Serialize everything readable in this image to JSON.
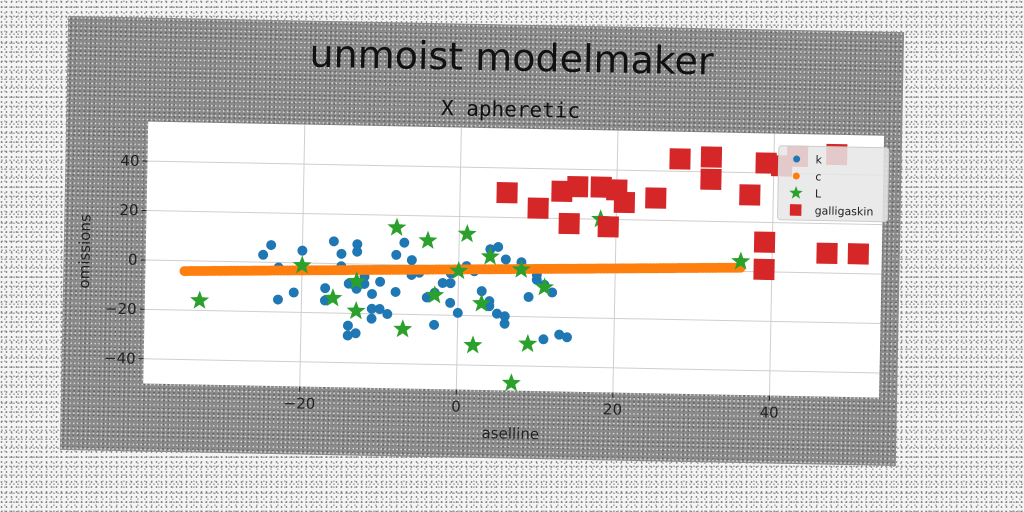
{
  "chart_data": {
    "type": "scatter",
    "suptitle": "unmoist modelmaker",
    "title": "X apheretic",
    "xlabel": "aselline",
    "ylabel": "omissions",
    "xlim": [
      -40,
      54
    ],
    "ylim": [
      -50,
      56
    ],
    "xticks": [
      -20,
      0,
      20,
      40
    ],
    "yticks": [
      -40,
      -20,
      0,
      20,
      40
    ],
    "xtick_labels": [
      "−20",
      "0",
      "20",
      "40"
    ],
    "ytick_labels": [
      "−40",
      "−20",
      "0",
      "20",
      "40"
    ],
    "grid": true,
    "legend_position": "top-right",
    "series": [
      {
        "name": "k",
        "marker": "circle",
        "color": "#1f77b4",
        "points": [
          [
            -24,
            7
          ],
          [
            -25,
            3
          ],
          [
            -23,
            -2
          ],
          [
            -23,
            -15
          ],
          [
            -21,
            -12
          ],
          [
            -20,
            5
          ],
          [
            -17,
            -10
          ],
          [
            -17,
            -15
          ],
          [
            -16,
            9
          ],
          [
            -15,
            4
          ],
          [
            -15,
            -1
          ],
          [
            -14,
            -8
          ],
          [
            -13,
            -10
          ],
          [
            -13,
            5
          ],
          [
            -13,
            8
          ],
          [
            -12,
            -5
          ],
          [
            -11,
            -18
          ],
          [
            -11,
            -22
          ],
          [
            -10,
            -18
          ],
          [
            -9,
            -20
          ],
          [
            -8,
            -11
          ],
          [
            -8,
            4
          ],
          [
            -7,
            9
          ],
          [
            -6,
            -4
          ],
          [
            -5,
            -3
          ],
          [
            -4,
            -13
          ],
          [
            -3,
            -11
          ],
          [
            -2,
            -7
          ],
          [
            -1,
            -7
          ],
          [
            -1,
            -15
          ],
          [
            0,
            -19
          ],
          [
            1,
            0
          ],
          [
            2,
            -2
          ],
          [
            3,
            -10
          ],
          [
            4,
            -14
          ],
          [
            4,
            -16
          ],
          [
            5,
            -19
          ],
          [
            6,
            -20
          ],
          [
            6,
            -23
          ],
          [
            4,
            7
          ],
          [
            5,
            8
          ],
          [
            6,
            3
          ],
          [
            -14,
            -25
          ],
          [
            -13,
            -28
          ],
          [
            -14,
            -29
          ],
          [
            -12,
            -8
          ],
          [
            -11,
            -12
          ],
          [
            -10,
            -7
          ],
          [
            -3,
            -24
          ],
          [
            -6,
            2
          ],
          [
            -1,
            -3
          ],
          [
            8,
            2
          ],
          [
            10,
            -5
          ],
          [
            9,
            -12
          ],
          [
            11,
            -7
          ],
          [
            12,
            -10
          ],
          [
            13,
            -27
          ],
          [
            14,
            -28
          ],
          [
            11,
            -29
          ],
          [
            10,
            -3
          ]
        ]
      },
      {
        "name": "c",
        "marker": "circle",
        "color": "#ff7f0e",
        "linear_fit": {
          "x_start": -35,
          "x_end": 36,
          "y_start": -4.2,
          "y_end": 1.5,
          "n": 180
        }
      },
      {
        "name": "L",
        "marker": "star",
        "color": "#2ca02c",
        "points": [
          [
            -33,
            -16
          ],
          [
            -20,
            -1
          ],
          [
            -16,
            -14
          ],
          [
            -13,
            -19
          ],
          [
            -13,
            -7
          ],
          [
            -8,
            15
          ],
          [
            -7,
            -26
          ],
          [
            -4,
            10
          ],
          [
            -3,
            -12
          ],
          [
            0,
            -2
          ],
          [
            1,
            13
          ],
          [
            2,
            -32
          ],
          [
            3,
            -15
          ],
          [
            4,
            4
          ],
          [
            7,
            -47
          ],
          [
            8,
            -1
          ],
          [
            9,
            -31
          ],
          [
            11,
            -8
          ],
          [
            18,
            20
          ],
          [
            36,
            4
          ]
        ]
      },
      {
        "name": "galligaskin",
        "marker": "square",
        "color": "#d62728",
        "points": [
          [
            6,
            30
          ],
          [
            10,
            24
          ],
          [
            13,
            31
          ],
          [
            14,
            18
          ],
          [
            15,
            33
          ],
          [
            18,
            33
          ],
          [
            19,
            17
          ],
          [
            20,
            32
          ],
          [
            21,
            27
          ],
          [
            25,
            29
          ],
          [
            28,
            45
          ],
          [
            32,
            37
          ],
          [
            32,
            46
          ],
          [
            37,
            31
          ],
          [
            39,
            44
          ],
          [
            41,
            43
          ],
          [
            43,
            47
          ],
          [
            48,
            48
          ],
          [
            39,
            12
          ],
          [
            39,
            1
          ],
          [
            47,
            8
          ],
          [
            51,
            8
          ]
        ]
      }
    ]
  }
}
